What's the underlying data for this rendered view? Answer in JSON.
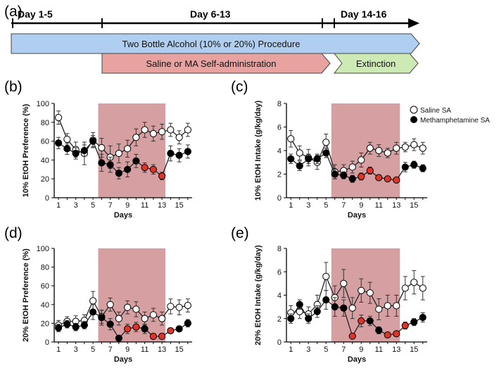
{
  "timeline": {
    "panel_label": "(a)",
    "periods": [
      "Day 1-5",
      "Day 6-13",
      "Day 14-16"
    ],
    "bar_alcohol": "Two Bottle Alcohol (10% or 20%) Procedure",
    "bar_sa": "Saline  or MA Self-administration",
    "bar_extinction": "Extinction",
    "colors": {
      "alcohol": "#b0cff0",
      "sa": "#e8a3a0",
      "extinction": "#cdeab4"
    }
  },
  "colors": {
    "shade": "#d6a0a2",
    "red_marker": "#e0332a",
    "black": "#000000",
    "white": "#ffffff"
  },
  "legend": [
    "Saline SA",
    "Methamphetamine SA"
  ],
  "chart_data": [
    {
      "id": "b",
      "panel_label": "(b)",
      "type": "line",
      "xlabel": "Days",
      "ylabel": "10% EtOH Preference (%)",
      "ylim": [
        0,
        100
      ],
      "yticks": [
        "0",
        "20",
        "40",
        "60",
        "80",
        "100"
      ],
      "yticks_values": [
        0,
        20,
        40,
        60,
        80,
        100
      ],
      "xticks": [
        "1",
        "3",
        "5",
        "7",
        "9",
        "11",
        "13",
        "15"
      ],
      "xticks_values": [
        1,
        3,
        5,
        7,
        9,
        11,
        13,
        15
      ],
      "x": [
        1,
        2,
        3,
        4,
        5,
        6,
        7,
        8,
        9,
        10,
        11,
        12,
        13,
        14,
        15,
        16
      ],
      "shaded_days": [
        5.6,
        13.4
      ],
      "red_days": [
        11,
        12,
        13
      ],
      "series": [
        {
          "name": "Saline SA",
          "values": [
            85,
            62,
            51,
            47,
            61,
            53,
            43,
            47,
            52,
            64,
            72,
            68,
            70,
            72,
            64,
            72
          ],
          "err": [
            7,
            6,
            8,
            12,
            8,
            10,
            12,
            10,
            9,
            9,
            8,
            8,
            8,
            7,
            7,
            7
          ]
        },
        {
          "name": "Methamphetamine SA",
          "values": [
            58,
            52,
            47,
            50,
            60,
            37,
            35,
            26,
            30,
            39,
            32,
            30,
            23,
            47,
            45,
            49
          ],
          "err": [
            6,
            6,
            6,
            6,
            6,
            9,
            8,
            6,
            8,
            7,
            5,
            5,
            4,
            8,
            7,
            7
          ]
        }
      ]
    },
    {
      "id": "c",
      "panel_label": "(c)",
      "type": "line",
      "xlabel": "Days",
      "ylabel": "10% EtOH Intake (g/kg/day)",
      "ylim": [
        0,
        8
      ],
      "yticks": [
        "0",
        "2",
        "4",
        "6",
        "8"
      ],
      "yticks_values": [
        0,
        2,
        4,
        6,
        8
      ],
      "xticks": [
        "1",
        "3",
        "5",
        "7",
        "9",
        "11",
        "13",
        "15"
      ],
      "xticks_values": [
        1,
        3,
        5,
        7,
        9,
        11,
        13,
        15
      ],
      "x": [
        1,
        2,
        3,
        4,
        5,
        6,
        7,
        8,
        9,
        10,
        11,
        12,
        13,
        14,
        15,
        16
      ],
      "shaded_days": [
        5.6,
        13.4
      ],
      "red_days": [
        9,
        10,
        11,
        12,
        13
      ],
      "series": [
        {
          "name": "Saline SA",
          "values": [
            5.0,
            3.8,
            3.4,
            3.0,
            4.7,
            2.2,
            2.3,
            2.6,
            3.2,
            4.2,
            4.0,
            3.8,
            4.2,
            4.3,
            4.5,
            4.2
          ],
          "err": [
            0.7,
            0.6,
            0.7,
            0.6,
            0.7,
            0.6,
            0.5,
            0.5,
            0.6,
            0.5,
            0.5,
            0.4,
            0.5,
            0.4,
            0.5,
            0.5
          ]
        },
        {
          "name": "Methamphetamine SA",
          "values": [
            3.3,
            2.7,
            3.3,
            3.3,
            3.8,
            2.0,
            1.9,
            1.6,
            1.8,
            2.3,
            1.7,
            1.6,
            1.5,
            2.6,
            2.8,
            2.5
          ],
          "err": [
            0.4,
            0.4,
            0.4,
            0.4,
            0.4,
            0.4,
            0.3,
            0.3,
            0.3,
            0.3,
            0.2,
            0.2,
            0.2,
            0.4,
            0.3,
            0.3
          ]
        }
      ]
    },
    {
      "id": "d",
      "panel_label": "(d)",
      "type": "line",
      "xlabel": "Days",
      "ylabel": "20% EtOH Preference (%)",
      "ylim": [
        0,
        100
      ],
      "yticks": [
        "0",
        "20",
        "40",
        "60",
        "80",
        "100"
      ],
      "yticks_values": [
        0,
        20,
        40,
        60,
        80,
        100
      ],
      "xticks": [
        "1",
        "3",
        "5",
        "7",
        "9",
        "11",
        "13",
        "15"
      ],
      "xticks_values": [
        1,
        3,
        5,
        7,
        9,
        11,
        13,
        15
      ],
      "x": [
        1,
        2,
        3,
        4,
        5,
        6,
        7,
        8,
        9,
        10,
        11,
        12,
        13,
        14,
        15,
        16
      ],
      "shaded_days": [
        5.6,
        13.4
      ],
      "red_days": [
        9,
        10,
        12,
        13,
        14
      ],
      "series": [
        {
          "name": "Saline SA",
          "values": [
            18,
            22,
            22,
            23,
            44,
            27,
            40,
            25,
            37,
            35,
            25,
            29,
            25,
            38,
            37,
            39
          ],
          "err": [
            5,
            5,
            6,
            6,
            10,
            7,
            7,
            7,
            7,
            8,
            7,
            7,
            7,
            8,
            8,
            7
          ]
        },
        {
          "name": "Methamphetamine SA",
          "values": [
            15,
            19,
            16,
            18,
            32,
            26,
            19,
            4,
            14,
            16,
            14,
            6,
            6,
            12,
            14,
            20
          ],
          "err": [
            4,
            4,
            4,
            4,
            8,
            8,
            6,
            2,
            5,
            5,
            5,
            2,
            2,
            3,
            3,
            4
          ]
        }
      ]
    },
    {
      "id": "e",
      "panel_label": "(e)",
      "type": "line",
      "xlabel": "Days",
      "ylabel": "20% EtOH Intake (g/kg/day)",
      "ylim": [
        0,
        8
      ],
      "yticks": [
        "0",
        "2",
        "4",
        "6",
        "8"
      ],
      "yticks_values": [
        0,
        2,
        4,
        6,
        8
      ],
      "xticks": [
        "1",
        "3",
        "5",
        "7",
        "9",
        "11",
        "13",
        "15"
      ],
      "xticks_values": [
        1,
        3,
        5,
        7,
        9,
        11,
        13,
        15
      ],
      "x": [
        1,
        2,
        3,
        4,
        5,
        6,
        7,
        8,
        9,
        10,
        11,
        12,
        13,
        14,
        15,
        16
      ],
      "shaded_days": [
        5.6,
        13.4
      ],
      "red_days": [
        8,
        9,
        12,
        13,
        14
      ],
      "series": [
        {
          "name": "Saline SA",
          "values": [
            2.5,
            2.6,
            2.4,
            3.2,
            5.6,
            3.8,
            5.0,
            2.9,
            4.4,
            4.2,
            2.8,
            3.1,
            3.1,
            4.6,
            5.1,
            4.6
          ],
          "err": [
            0.6,
            0.6,
            0.6,
            0.8,
            1.2,
            1.0,
            1.2,
            0.9,
            1.0,
            0.9,
            0.9,
            0.9,
            0.9,
            1.0,
            1.0,
            1.0
          ]
        },
        {
          "name": "Methamphetamine SA",
          "values": [
            2.0,
            3.2,
            2.0,
            2.6,
            3.6,
            3.0,
            2.9,
            0.5,
            1.8,
            1.8,
            1.0,
            0.6,
            0.7,
            1.4,
            1.7,
            2.1
          ],
          "err": [
            0.4,
            0.4,
            0.4,
            0.5,
            0.8,
            0.8,
            0.7,
            0.2,
            0.5,
            0.4,
            0.3,
            0.2,
            0.2,
            0.3,
            0.3,
            0.4
          ]
        }
      ]
    }
  ]
}
